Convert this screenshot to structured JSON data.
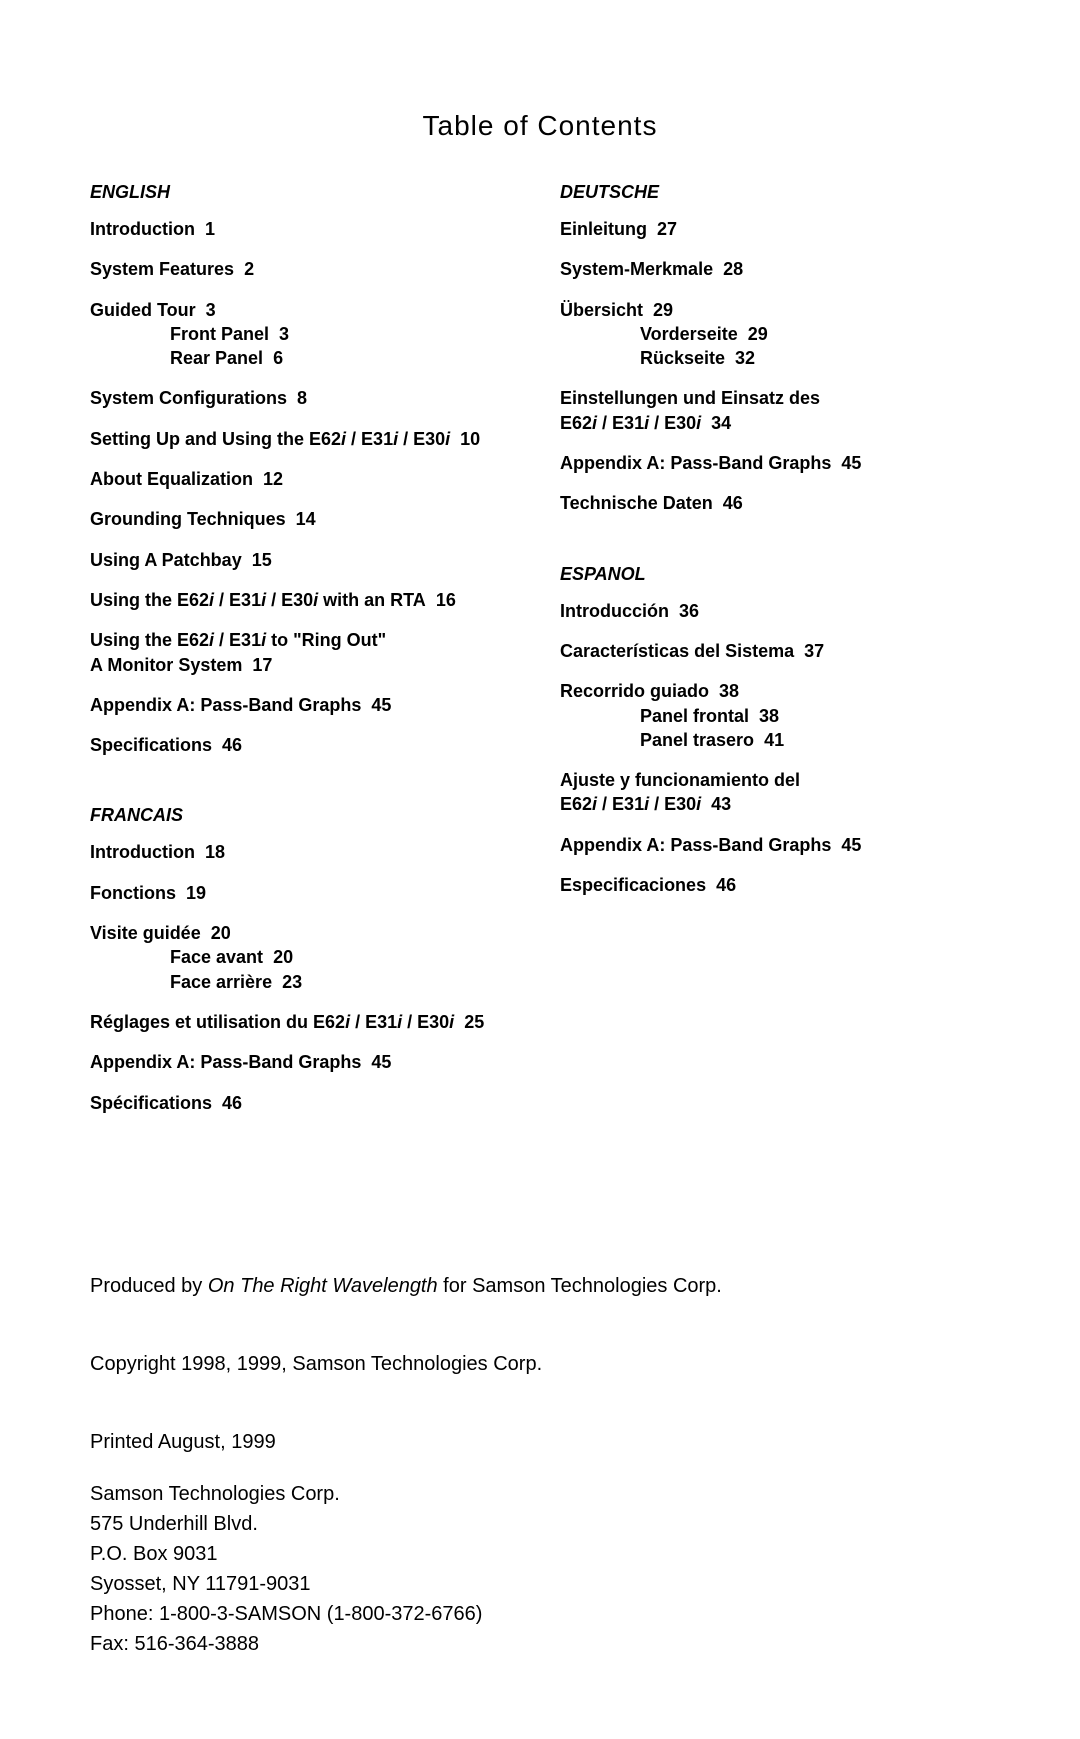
{
  "title": "Table of Contents",
  "sections": {
    "english": {
      "heading": "ENGLISH",
      "entries": [
        {
          "label": "Introduction",
          "page": "1"
        },
        {
          "label": "System Features",
          "page": "2"
        },
        {
          "label": "Guided Tour",
          "page": "3",
          "subs": [
            {
              "label": "Front Panel",
              "page": "3"
            },
            {
              "label": "Rear Panel",
              "page": "6"
            }
          ]
        },
        {
          "label": "System Configurations",
          "page": "8"
        },
        {
          "label_html": "Setting Up and Using the E62<span class='ital'>i</span> / E31<span class='ital'>i</span> / E30<span class='ital'>i</span>",
          "page": "10"
        },
        {
          "label": "About Equalization",
          "page": "12"
        },
        {
          "label": "Grounding Techniques",
          "page": "14"
        },
        {
          "label": "Using A Patchbay",
          "page": "15"
        },
        {
          "label_html": "Using the E62<span class='ital'>i</span> / E31<span class='ital'>i</span> / E30<span class='ital'>i</span> with an RTA",
          "page": "16"
        },
        {
          "label_html": "Using the E62<span class='ital'>i</span> / E31<span class='ital'>i</span> to \"Ring Out\"<br>A Monitor System",
          "page": "17"
        },
        {
          "label": "Appendix A: Pass-Band Graphs",
          "page": "45"
        },
        {
          "label": "Specifications",
          "page": "46"
        }
      ]
    },
    "francais": {
      "heading": "FRANCAIS",
      "entries": [
        {
          "label": "Introduction",
          "page": "18"
        },
        {
          "label": "Fonctions",
          "page": "19"
        },
        {
          "label": "Visite guidée",
          "page": "20",
          "subs": [
            {
              "label": "Face avant",
              "page": "20"
            },
            {
              "label": "Face arrière",
              "page": "23"
            }
          ]
        },
        {
          "label_html": "Réglages et utilisation du E62<span class='ital'>i</span> / E31<span class='ital'>i</span> / E30<span class='ital'>i</span>",
          "page": "25"
        },
        {
          "label": "Appendix A: Pass-Band Graphs",
          "page": "45"
        },
        {
          "label": "Spécifications",
          "page": "46"
        }
      ]
    },
    "deutsche": {
      "heading": "DEUTSCHE",
      "entries": [
        {
          "label": "Einleitung",
          "page": "27"
        },
        {
          "label": "System-Merkmale",
          "page": "28"
        },
        {
          "label": "Übersicht",
          "page": "29",
          "subs": [
            {
              "label": "Vorderseite",
              "page": "29"
            },
            {
              "label": "Rückseite",
              "page": "32"
            }
          ]
        },
        {
          "label_html": "Einstellungen und Einsatz des<br>E62<span class='ital'>i</span> / E31<span class='ital'>i</span> / E30<span class='ital'>i</span>",
          "page": "34"
        },
        {
          "label": "Appendix A: Pass-Band Graphs",
          "page": "45"
        },
        {
          "label": "Technische Daten",
          "page": "46"
        }
      ]
    },
    "espanol": {
      "heading": "ESPANOL",
      "entries": [
        {
          "label": "Introducción",
          "page": "36"
        },
        {
          "label": "Características del Sistema",
          "page": "37"
        },
        {
          "label": "Recorrido guiado",
          "page": "38",
          "subs": [
            {
              "label": "Panel frontal",
              "page": "38"
            },
            {
              "label": "Panel trasero",
              "page": "41"
            }
          ]
        },
        {
          "label_html": "Ajuste y funcionamiento del<br>E62<span class='ital'>i</span> / E31<span class='ital'>i</span> / E30<span class='ital'>i</span>",
          "page": "43"
        },
        {
          "label": "Appendix A: Pass-Band Graphs",
          "page": "45"
        },
        {
          "label": "Especificaciones",
          "page": "46"
        }
      ]
    }
  },
  "footer": {
    "produced_pre": "Produced by ",
    "produced_em": "On The Right Wavelength",
    "produced_post": " for Samson Technologies Corp.",
    "copyright": "Copyright 1998, 1999, Samson Technologies Corp.",
    "printed": "Printed August, 1999",
    "addr1": "Samson Technologies Corp.",
    "addr2": "575 Underhill Blvd.",
    "addr3": "P.O. Box 9031",
    "addr4": "Syosset, NY 11791-9031",
    "phone": "Phone: 1-800-3-SAMSON (1-800-372-6766)",
    "fax": "Fax: 516-364-3888"
  }
}
